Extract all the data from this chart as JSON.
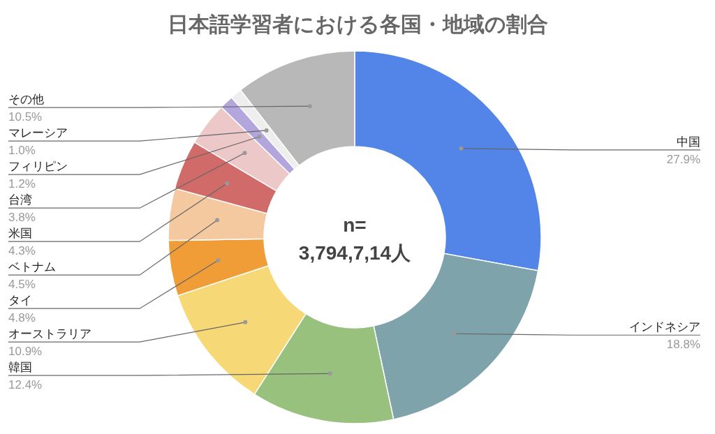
{
  "chart_data": {
    "type": "donut",
    "title": "日本語学習者における各国・地域の割合",
    "categories": [
      "中国",
      "インドネシア",
      "韓国",
      "オーストラリア",
      "タイ",
      "ベトナム",
      "米国",
      "台湾",
      "フィリピン",
      "マレーシア",
      "その他"
    ],
    "values": [
      27.9,
      18.8,
      12.4,
      10.9,
      4.8,
      4.5,
      4.3,
      3.8,
      1.2,
      1.0,
      10.5
    ],
    "value_labels": [
      "27.9%",
      "18.8%",
      "12.4%",
      "10.9%",
      "4.8%",
      "4.5%",
      "4.3%",
      "3.8%",
      "1.2%",
      "1.0%",
      "10.5%"
    ],
    "colors": [
      "#5384e8",
      "#7fa3ab",
      "#98c17e",
      "#f7d877",
      "#f09d38",
      "#f4c9a0",
      "#d06b69",
      "#ecc8c8",
      "#b2a6dc",
      "#eeeeee",
      "#b8b8b8"
    ],
    "annotations": [
      "n=\n3,794,7,14人"
    ]
  }
}
